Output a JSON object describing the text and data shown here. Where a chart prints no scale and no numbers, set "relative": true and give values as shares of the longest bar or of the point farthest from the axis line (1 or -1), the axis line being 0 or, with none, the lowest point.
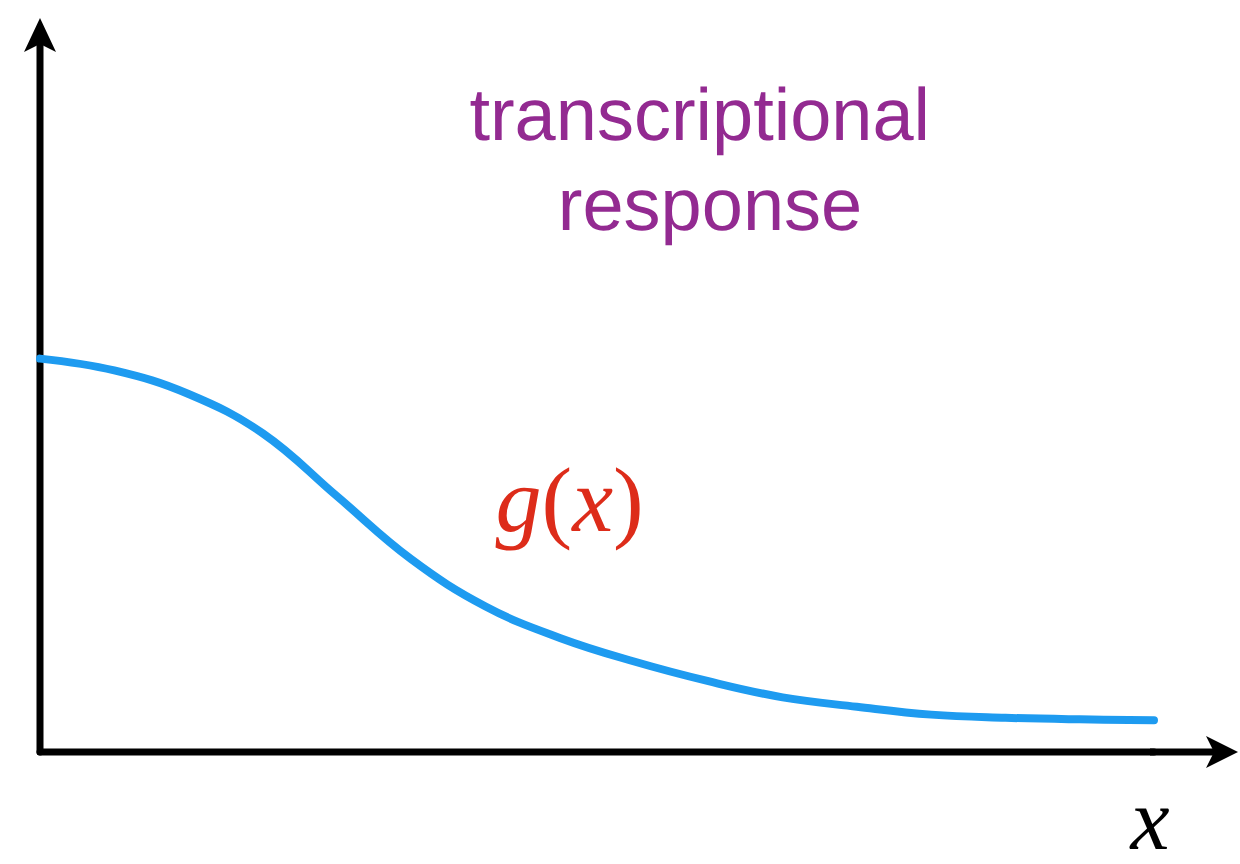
{
  "chart_data": {
    "type": "line",
    "title": "transcriptional response",
    "xlabel": "x",
    "relative": true,
    "categories": [
      null,
      null,
      null,
      null,
      null,
      null,
      null,
      null,
      null,
      null,
      null,
      null,
      null,
      null,
      null,
      null
    ],
    "series": [
      {
        "name": "g(x)",
        "color": "#1e9bf0",
        "values": [
          1,
          0.97,
          0.91,
          0.81,
          0.65,
          0.49,
          0.37,
          0.29,
          0.23,
          0.18,
          0.139,
          0.115,
          0.095,
          0.087,
          0.083,
          0.081
        ]
      }
    ],
    "marker": "none",
    "line_style": "solid"
  }
}
